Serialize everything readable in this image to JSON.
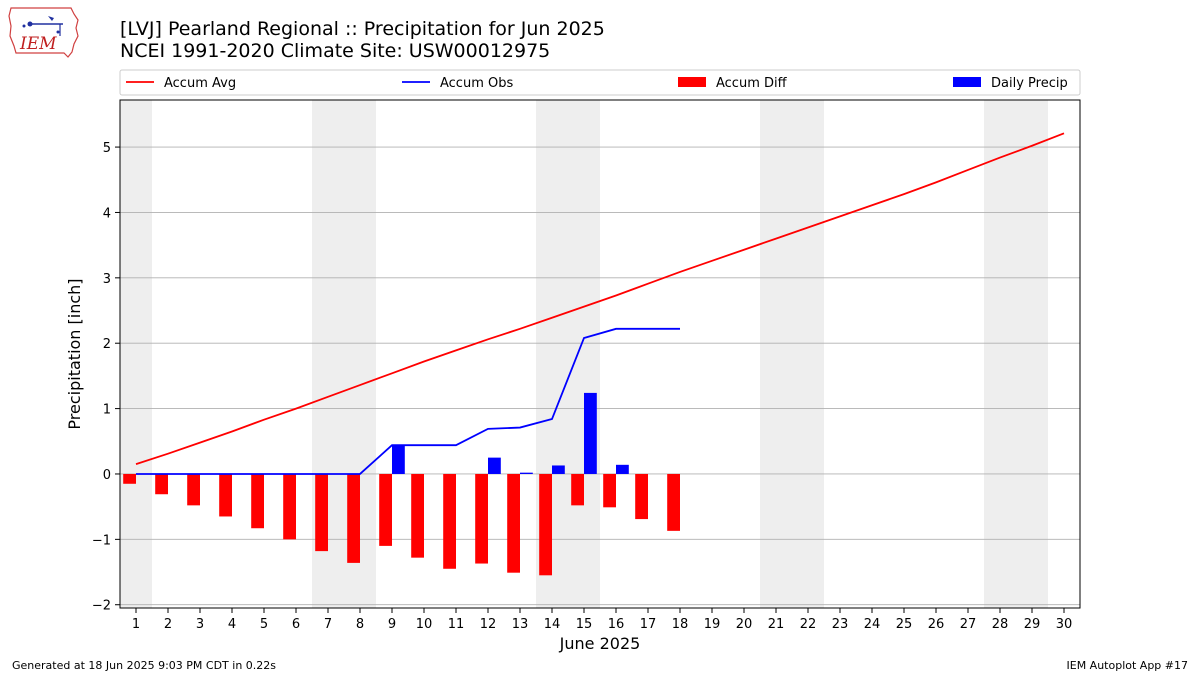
{
  "header": {
    "title_line1": "[LVJ] Pearland Regional :: Precipitation for Jun 2025",
    "title_line2": "NCEI 1991-2020 Climate Site: USW00012975",
    "logo_text": "IEM"
  },
  "footer": {
    "left": "Generated at 18 Jun 2025 9:03 PM CDT in 0.22s",
    "right": "IEM Autoplot App #17"
  },
  "colors": {
    "accum_avg": "#ff0000",
    "accum_obs": "#0000ff",
    "accum_diff": "#ff0000",
    "daily_precip": "#0000ff",
    "weekend_band": "#eeeeee",
    "grid": "#b0b0b0"
  },
  "chart_data": {
    "type": "bar",
    "xlabel": "June 2025",
    "ylabel": "Precipitation [inch]",
    "xlim": [
      0.5,
      30.5
    ],
    "ylim": [
      -2.05,
      5.72
    ],
    "x_ticks": [
      1,
      2,
      3,
      4,
      5,
      6,
      7,
      8,
      9,
      10,
      11,
      12,
      13,
      14,
      15,
      16,
      17,
      18,
      19,
      20,
      21,
      22,
      23,
      24,
      25,
      26,
      27,
      28,
      29,
      30
    ],
    "y_ticks": [
      -2,
      -1,
      0,
      1,
      2,
      3,
      4,
      5
    ],
    "grid": "horizontal",
    "legend_position": "top",
    "legend": [
      "Accum Avg",
      "Accum Obs",
      "Accum Diff",
      "Daily Precip"
    ],
    "weekend_bands": [
      [
        0.5,
        1.5
      ],
      [
        6.5,
        8.5
      ],
      [
        13.5,
        15.5
      ],
      [
        20.5,
        22.5
      ],
      [
        27.5,
        29.5
      ]
    ],
    "series": [
      {
        "name": "Accum Avg",
        "kind": "line",
        "x": [
          1,
          2,
          3,
          4,
          5,
          6,
          7,
          8,
          9,
          10,
          11,
          12,
          13,
          14,
          15,
          16,
          17,
          18,
          19,
          20,
          21,
          22,
          23,
          24,
          25,
          26,
          27,
          28,
          29,
          30
        ],
        "values": [
          0.15,
          0.31,
          0.48,
          0.65,
          0.83,
          1.0,
          1.18,
          1.36,
          1.54,
          1.72,
          1.89,
          2.06,
          2.22,
          2.39,
          2.56,
          2.73,
          2.91,
          3.09,
          3.26,
          3.43,
          3.6,
          3.77,
          3.94,
          4.11,
          4.28,
          4.46,
          4.65,
          4.84,
          5.02,
          5.21
        ]
      },
      {
        "name": "Accum Obs",
        "kind": "line",
        "x": [
          1,
          2,
          3,
          4,
          5,
          6,
          7,
          8,
          9,
          10,
          11,
          12,
          13,
          14,
          15,
          16,
          17,
          18
        ],
        "values": [
          0.0,
          0.0,
          0.0,
          0.0,
          0.0,
          0.0,
          0.0,
          0.0,
          0.44,
          0.44,
          0.44,
          0.69,
          0.71,
          0.84,
          2.08,
          2.22,
          2.22,
          2.22
        ]
      },
      {
        "name": "Accum Diff",
        "kind": "bar",
        "offset": -0.2,
        "x": [
          1,
          2,
          3,
          4,
          5,
          6,
          7,
          8,
          9,
          10,
          11,
          12,
          13,
          14,
          15,
          16,
          17,
          18
        ],
        "values": [
          -0.15,
          -0.31,
          -0.48,
          -0.65,
          -0.83,
          -1.0,
          -1.18,
          -1.36,
          -1.1,
          -1.28,
          -1.45,
          -1.37,
          -1.51,
          -1.55,
          -0.48,
          -0.51,
          -0.69,
          -0.87
        ]
      },
      {
        "name": "Daily Precip",
        "kind": "bar",
        "offset": 0.2,
        "x": [
          1,
          2,
          3,
          4,
          5,
          6,
          7,
          8,
          9,
          10,
          11,
          12,
          13,
          14,
          15,
          16,
          17,
          18
        ],
        "values": [
          0,
          0,
          0,
          0,
          0,
          0,
          0,
          0,
          0.44,
          0,
          0,
          0.25,
          0.02,
          0.13,
          1.24,
          0.14,
          0,
          0
        ]
      }
    ]
  }
}
